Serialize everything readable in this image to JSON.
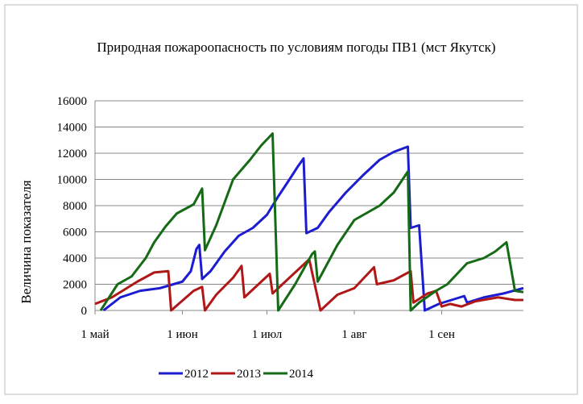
{
  "chart_data": {
    "type": "line",
    "title": "Природная пожароопасность по условиям погоды ПВ1 (мст Якутск)",
    "y_label": "Величина показателя",
    "xlim": [
      0,
      152
    ],
    "xticks": [
      {
        "value": 0,
        "label": "1 май"
      },
      {
        "value": 31,
        "label": "1 июн"
      },
      {
        "value": 61,
        "label": "1 июл"
      },
      {
        "value": 92,
        "label": "1 авг"
      },
      {
        "value": 123,
        "label": "1 сен"
      }
    ],
    "ylim": [
      0,
      16000
    ],
    "yticks": [
      0,
      2000,
      4000,
      6000,
      8000,
      10000,
      12000,
      14000,
      16000
    ],
    "grid": true,
    "legend": "bottom",
    "series": [
      {
        "name": "2012",
        "color": "#1c1cd0",
        "x": [
          3,
          9,
          16,
          23,
          31,
          34,
          36,
          37,
          38,
          41,
          46,
          51,
          56,
          61,
          65,
          69,
          72,
          74,
          75,
          79,
          83,
          89,
          95,
          101,
          106,
          111,
          112,
          115,
          117,
          122,
          128,
          131,
          132,
          138,
          145,
          152
        ],
        "values": [
          0,
          1000,
          1500,
          1700,
          2200,
          3000,
          4700,
          5000,
          2400,
          3000,
          4500,
          5700,
          6300,
          7300,
          8700,
          10000,
          11000,
          11600,
          5900,
          6300,
          7500,
          9000,
          10300,
          11500,
          12100,
          12500,
          6300,
          6500,
          0,
          500,
          900,
          1100,
          600,
          1000,
          1300,
          1700
        ]
      },
      {
        "name": "2013",
        "color": "#b01818",
        "x": [
          0,
          6,
          15,
          21,
          26,
          27,
          35,
          38,
          39,
          43,
          49,
          52,
          53,
          58,
          62,
          63,
          69,
          74,
          76,
          80,
          86,
          92,
          99,
          100,
          106,
          112,
          113,
          118,
          121,
          123,
          126,
          130,
          135,
          143,
          149,
          152
        ],
        "values": [
          500,
          1000,
          2200,
          2900,
          3000,
          0,
          1500,
          1800,
          0,
          1200,
          2500,
          3400,
          1000,
          2000,
          2800,
          1300,
          2500,
          3500,
          3900,
          0,
          1200,
          1700,
          3300,
          2000,
          2300,
          3000,
          600,
          1300,
          1500,
          300,
          500,
          300,
          700,
          1000,
          800,
          800
        ]
      },
      {
        "name": "2014",
        "color": "#156a15",
        "x": [
          2,
          8,
          13,
          18,
          21,
          25,
          29,
          35,
          38,
          39,
          43,
          49,
          55,
          59,
          63,
          65,
          71,
          77,
          78,
          79,
          86,
          92,
          101,
          106,
          111,
          112,
          115,
          121,
          125,
          132,
          138,
          142,
          146,
          149,
          152
        ],
        "values": [
          0,
          2000,
          2600,
          4000,
          5200,
          6400,
          7400,
          8100,
          9300,
          4600,
          6500,
          10000,
          11500,
          12600,
          13500,
          0,
          2000,
          4300,
          4500,
          2200,
          5000,
          6900,
          8000,
          9000,
          10600,
          0,
          600,
          1500,
          2000,
          3600,
          4000,
          4500,
          5200,
          1500,
          1400
        ]
      }
    ]
  }
}
